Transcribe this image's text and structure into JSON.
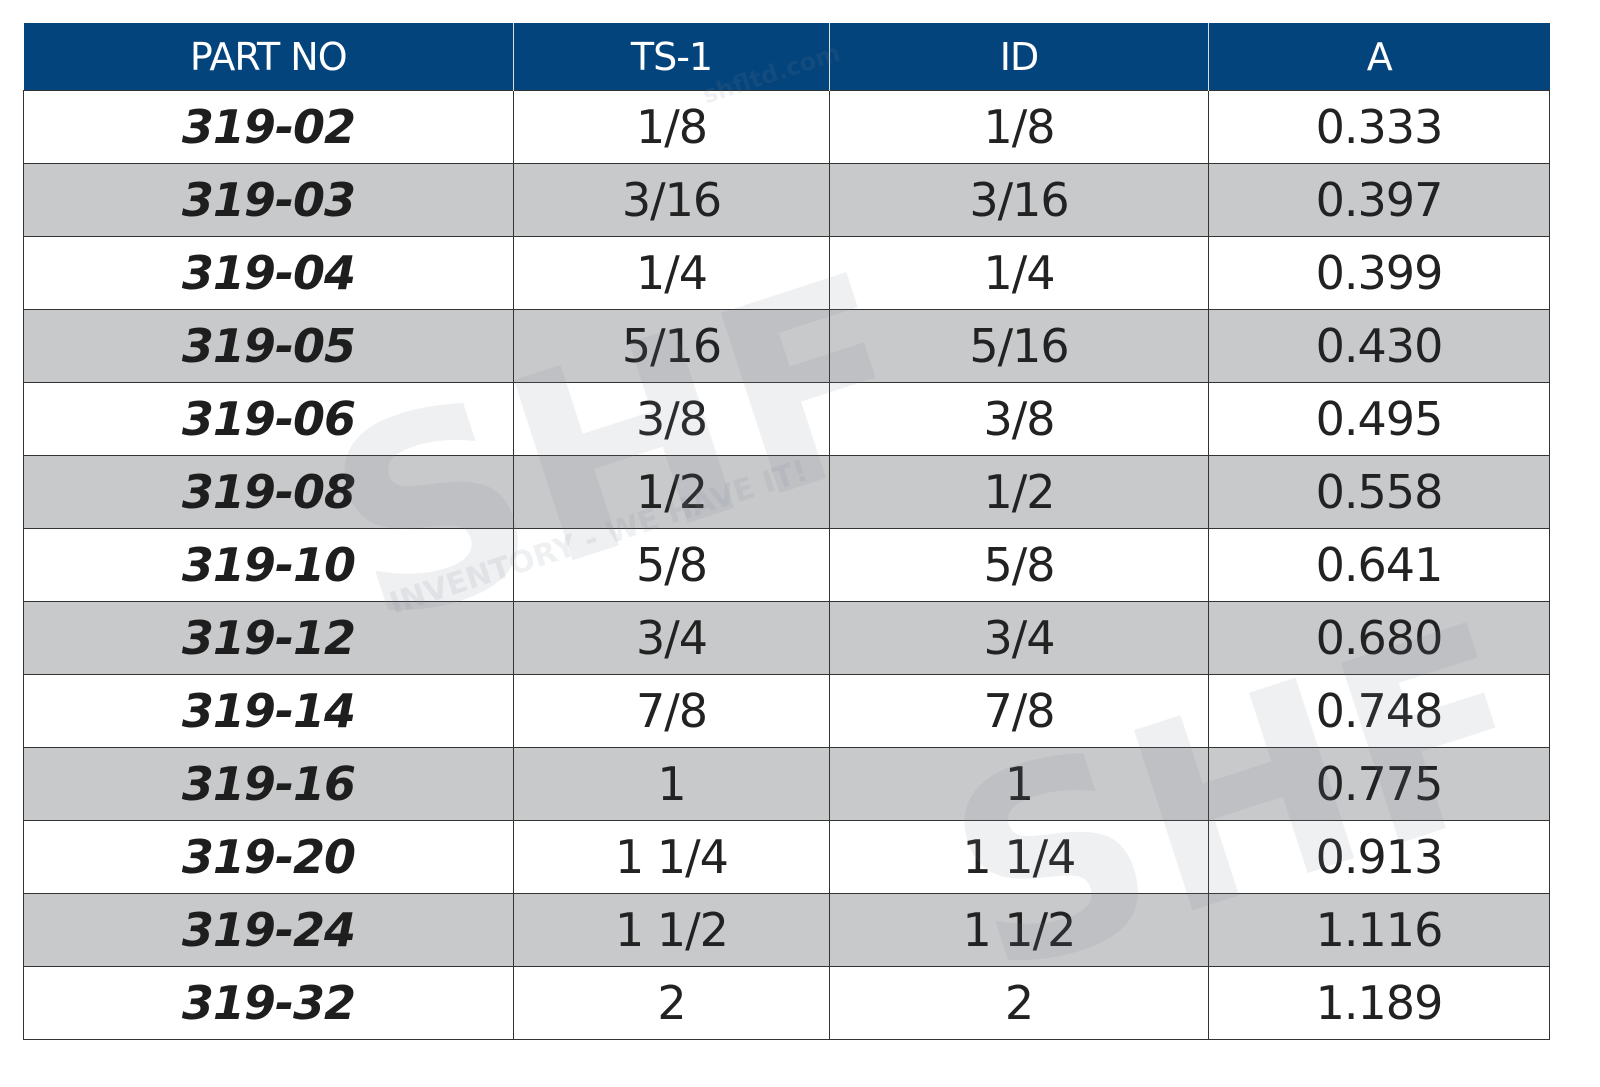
{
  "table": {
    "headers": [
      "PART NO",
      "TS-1",
      "ID",
      "A"
    ],
    "rows": [
      [
        "319-02",
        "1/8",
        "1/8",
        "0.333"
      ],
      [
        "319-03",
        "3/16",
        "3/16",
        "0.397"
      ],
      [
        "319-04",
        "1/4",
        "1/4",
        "0.399"
      ],
      [
        "319-05",
        "5/16",
        "5/16",
        "0.430"
      ],
      [
        "319-06",
        "3/8",
        "3/8",
        "0.495"
      ],
      [
        "319-08",
        "1/2",
        "1/2",
        "0.558"
      ],
      [
        "319-10",
        "5/8",
        "5/8",
        "0.641"
      ],
      [
        "319-12",
        "3/4",
        "3/4",
        "0.680"
      ],
      [
        "319-14",
        "7/8",
        "7/8",
        "0.748"
      ],
      [
        "319-16",
        "1",
        "1",
        "0.775"
      ],
      [
        "319-20",
        "1 1/4",
        "1 1/4",
        "0.913"
      ],
      [
        "319-24",
        "1 1/2",
        "1 1/2",
        "1.116"
      ],
      [
        "319-32",
        "2",
        "2",
        "1.189"
      ]
    ]
  },
  "watermark": {
    "logo": "SHF",
    "slogan": "INVENTORY - WE HAVE IT!",
    "site": "shfltd.com"
  },
  "colors": {
    "header_bg": "#04447c",
    "alt_row_bg": "#c8c9cb"
  }
}
